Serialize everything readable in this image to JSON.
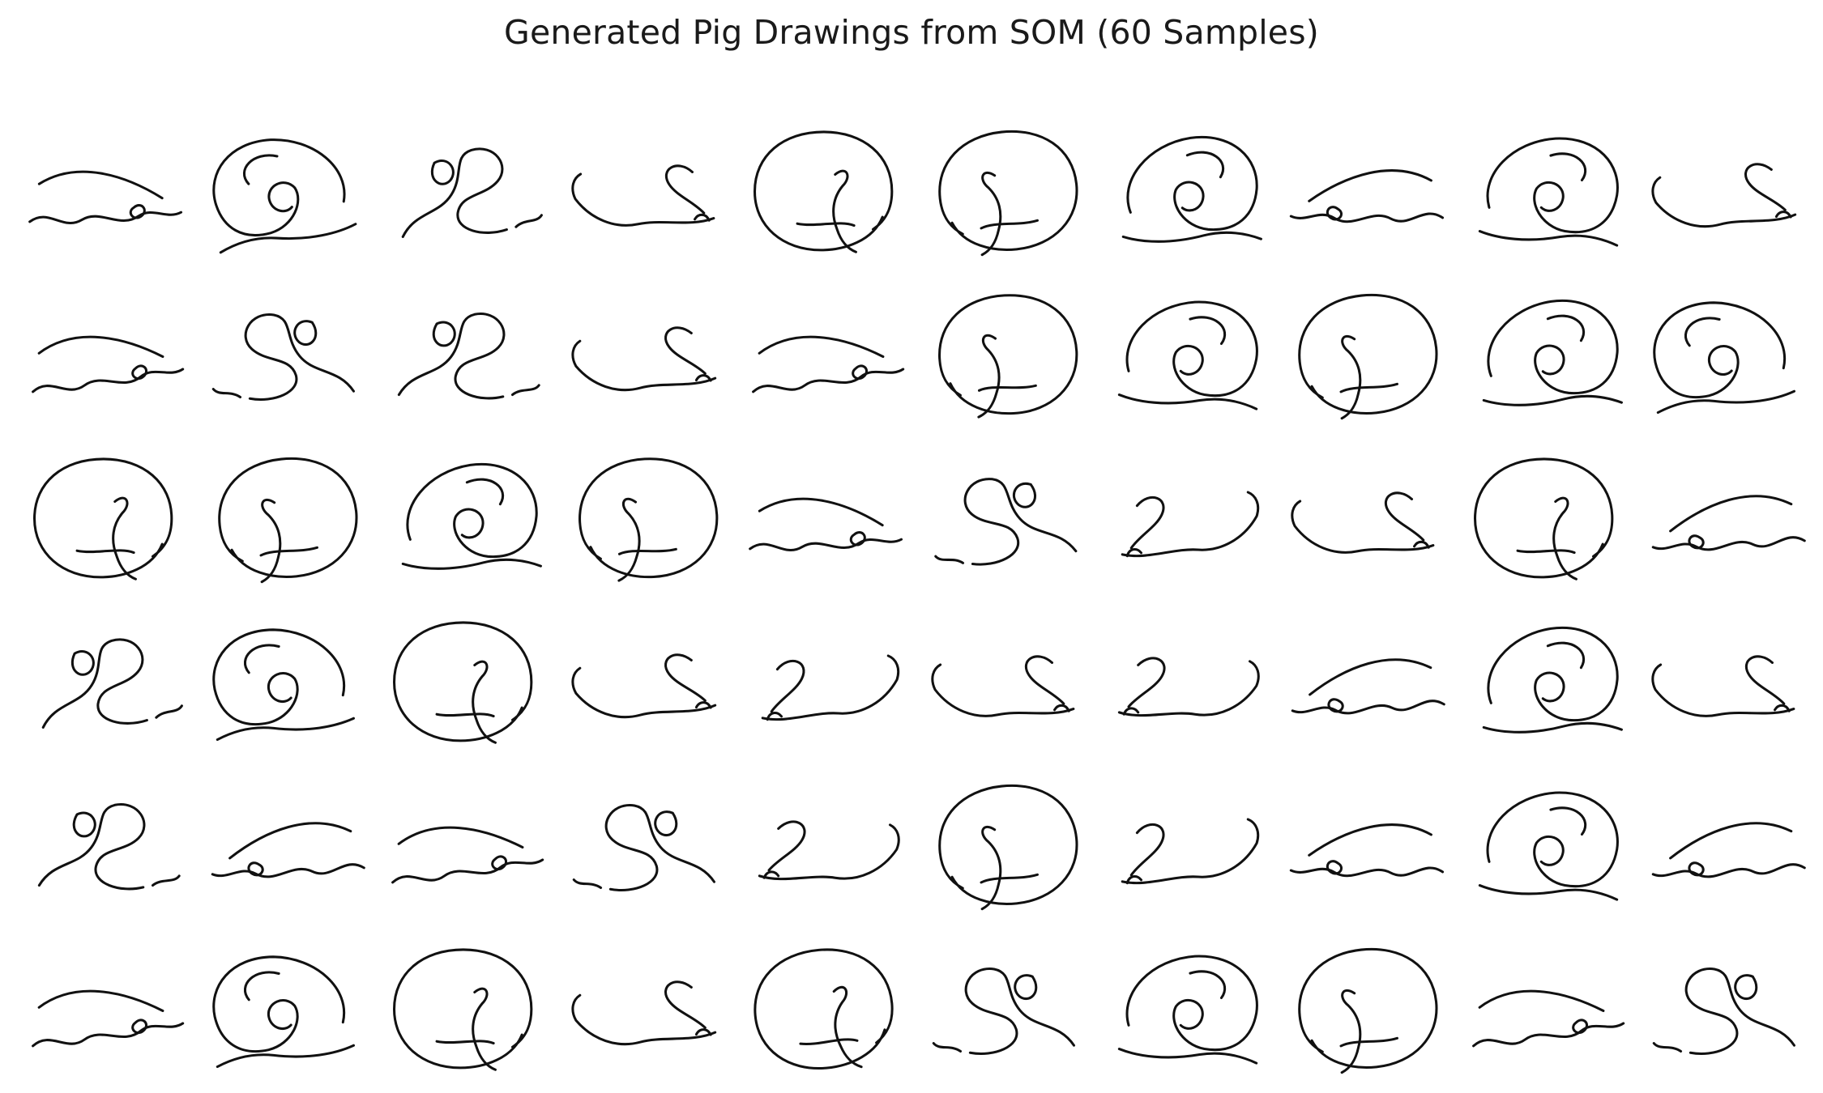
{
  "figure": {
    "title": "Generated Pig Drawings from SOM (60 Samples)",
    "stroke_color": "#111111",
    "background": "#ffffff",
    "grid": {
      "rows": 6,
      "columns": 10
    }
  },
  "samples": [
    {
      "shape": "wave"
    },
    {
      "shape": "spiral"
    },
    {
      "shape": "scribble"
    },
    {
      "shape": "hook"
    },
    {
      "shape": "circle"
    },
    {
      "shape": "circle"
    },
    {
      "shape": "spiral"
    },
    {
      "shape": "wave"
    },
    {
      "shape": "spiral"
    },
    {
      "shape": "hook"
    },
    {
      "shape": "wave"
    },
    {
      "shape": "scribble"
    },
    {
      "shape": "scribble"
    },
    {
      "shape": "hook"
    },
    {
      "shape": "wave"
    },
    {
      "shape": "circle"
    },
    {
      "shape": "spiral"
    },
    {
      "shape": "circle"
    },
    {
      "shape": "spiral"
    },
    {
      "shape": "spiral"
    },
    {
      "shape": "circle"
    },
    {
      "shape": "circle"
    },
    {
      "shape": "spiral"
    },
    {
      "shape": "circle"
    },
    {
      "shape": "wave"
    },
    {
      "shape": "scribble"
    },
    {
      "shape": "hook"
    },
    {
      "shape": "hook"
    },
    {
      "shape": "circle"
    },
    {
      "shape": "wave"
    },
    {
      "shape": "scribble"
    },
    {
      "shape": "spiral"
    },
    {
      "shape": "circle"
    },
    {
      "shape": "hook"
    },
    {
      "shape": "hook"
    },
    {
      "shape": "hook"
    },
    {
      "shape": "hook"
    },
    {
      "shape": "wave"
    },
    {
      "shape": "spiral"
    },
    {
      "shape": "hook"
    },
    {
      "shape": "scribble"
    },
    {
      "shape": "wave"
    },
    {
      "shape": "wave"
    },
    {
      "shape": "scribble"
    },
    {
      "shape": "hook"
    },
    {
      "shape": "circle"
    },
    {
      "shape": "hook"
    },
    {
      "shape": "wave"
    },
    {
      "shape": "spiral"
    },
    {
      "shape": "wave"
    },
    {
      "shape": "wave"
    },
    {
      "shape": "spiral"
    },
    {
      "shape": "circle"
    },
    {
      "shape": "hook"
    },
    {
      "shape": "circle"
    },
    {
      "shape": "scribble"
    },
    {
      "shape": "spiral"
    },
    {
      "shape": "circle"
    },
    {
      "shape": "wave"
    },
    {
      "shape": "scribble"
    }
  ]
}
